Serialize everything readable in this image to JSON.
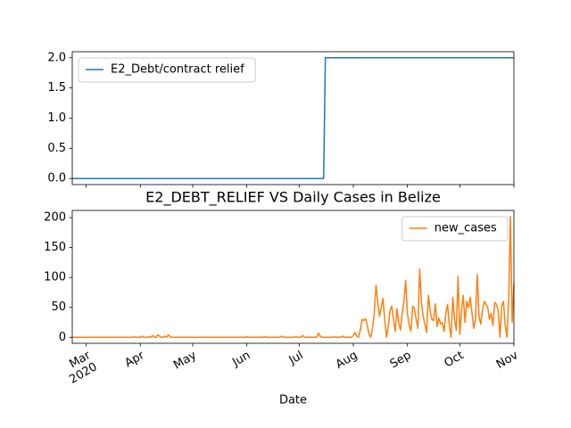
{
  "chart_data": [
    {
      "type": "line",
      "x": [
        0,
        144,
        145,
        253
      ],
      "series": [
        {
          "name": "E2_Debt/contract relief",
          "color": "#1f77b4",
          "values": [
            0,
            0,
            2,
            2
          ]
        }
      ],
      "xlim": [
        0,
        253
      ],
      "ylim": [
        -0.1,
        2.1
      ],
      "yticks": [
        {
          "value": 0,
          "label": "0.0"
        },
        0.5,
        {
          "value": 1,
          "label": "1.0"
        },
        1.5,
        {
          "value": 2,
          "label": "2.0"
        }
      ],
      "legend": "upper left"
    },
    {
      "type": "line",
      "title": "E2_DEBT_RELIEF VS Daily Cases in Belize",
      "xlabel": "Date",
      "series": [
        {
          "name": "new_cases",
          "color": "#ff7f0e",
          "values": [
            0,
            0,
            0,
            0,
            0,
            0,
            0,
            0,
            0,
            0,
            0,
            0,
            0,
            0,
            0,
            0,
            0,
            0,
            0,
            0,
            0,
            0,
            0,
            0,
            0,
            0,
            0,
            0,
            0,
            0,
            0,
            0,
            0,
            0,
            0,
            1,
            0,
            0,
            0,
            0,
            2,
            0,
            0,
            0,
            1,
            0,
            3,
            0,
            0,
            4,
            2,
            0,
            0,
            2,
            0,
            4,
            1,
            0,
            0,
            0,
            0,
            0,
            0,
            0,
            0,
            0,
            0,
            0,
            0,
            0,
            0,
            0,
            0,
            0,
            0,
            0,
            0,
            0,
            0,
            0,
            0,
            0,
            0,
            0,
            0,
            0,
            0,
            0,
            0,
            0,
            0,
            0,
            0,
            0,
            0,
            0,
            0,
            0,
            0,
            0,
            1,
            0,
            0,
            0,
            0,
            0,
            0,
            0,
            0,
            0,
            1,
            0,
            0,
            0,
            0,
            0,
            0,
            0,
            0,
            0,
            2,
            0,
            0,
            0,
            0,
            0,
            0,
            0,
            1,
            0,
            0,
            0,
            3,
            0,
            0,
            0,
            0,
            0,
            0,
            0,
            0,
            7,
            2,
            0,
            0,
            0,
            0,
            0,
            0,
            0,
            1,
            0,
            0,
            0,
            0,
            2,
            0,
            0,
            0,
            0,
            0,
            3,
            8,
            2,
            0,
            12,
            30,
            28,
            31,
            20,
            5,
            0,
            15,
            40,
            87,
            60,
            35,
            50,
            65,
            30,
            0,
            18,
            45,
            52,
            30,
            10,
            48,
            25,
            12,
            40,
            60,
            95,
            40,
            20,
            10,
            52,
            48,
            30,
            15,
            114,
            60,
            35,
            22,
            8,
            70,
            45,
            30,
            28,
            56,
            18,
            32,
            22,
            25,
            10,
            40,
            55,
            20,
            0,
            67,
            30,
            12,
            102,
            5,
            45,
            70,
            25,
            60,
            50,
            67,
            40,
            15,
            30,
            105,
            35,
            22,
            45,
            60,
            55,
            50,
            30,
            40,
            20,
            58,
            55,
            45,
            0,
            52,
            60,
            20,
            0,
            62,
            202,
            25,
            90
          ]
        }
      ],
      "xlim": [
        0,
        253
      ],
      "xticks": [
        {
          "value": 8,
          "label": "Mar\n2020"
        },
        {
          "value": 39,
          "label": "Apr"
        },
        {
          "value": 69,
          "label": "May"
        },
        {
          "value": 100,
          "label": "Jun"
        },
        {
          "value": 130,
          "label": "Jul"
        },
        {
          "value": 161,
          "label": "Aug"
        },
        {
          "value": 192,
          "label": "Sep"
        },
        {
          "value": 222,
          "label": "Oct"
        },
        {
          "value": 253,
          "label": "Nov"
        }
      ],
      "ylim": [
        -10,
        212
      ],
      "yticks": [
        0,
        50,
        100,
        150,
        200
      ],
      "legend": "upper right"
    }
  ]
}
